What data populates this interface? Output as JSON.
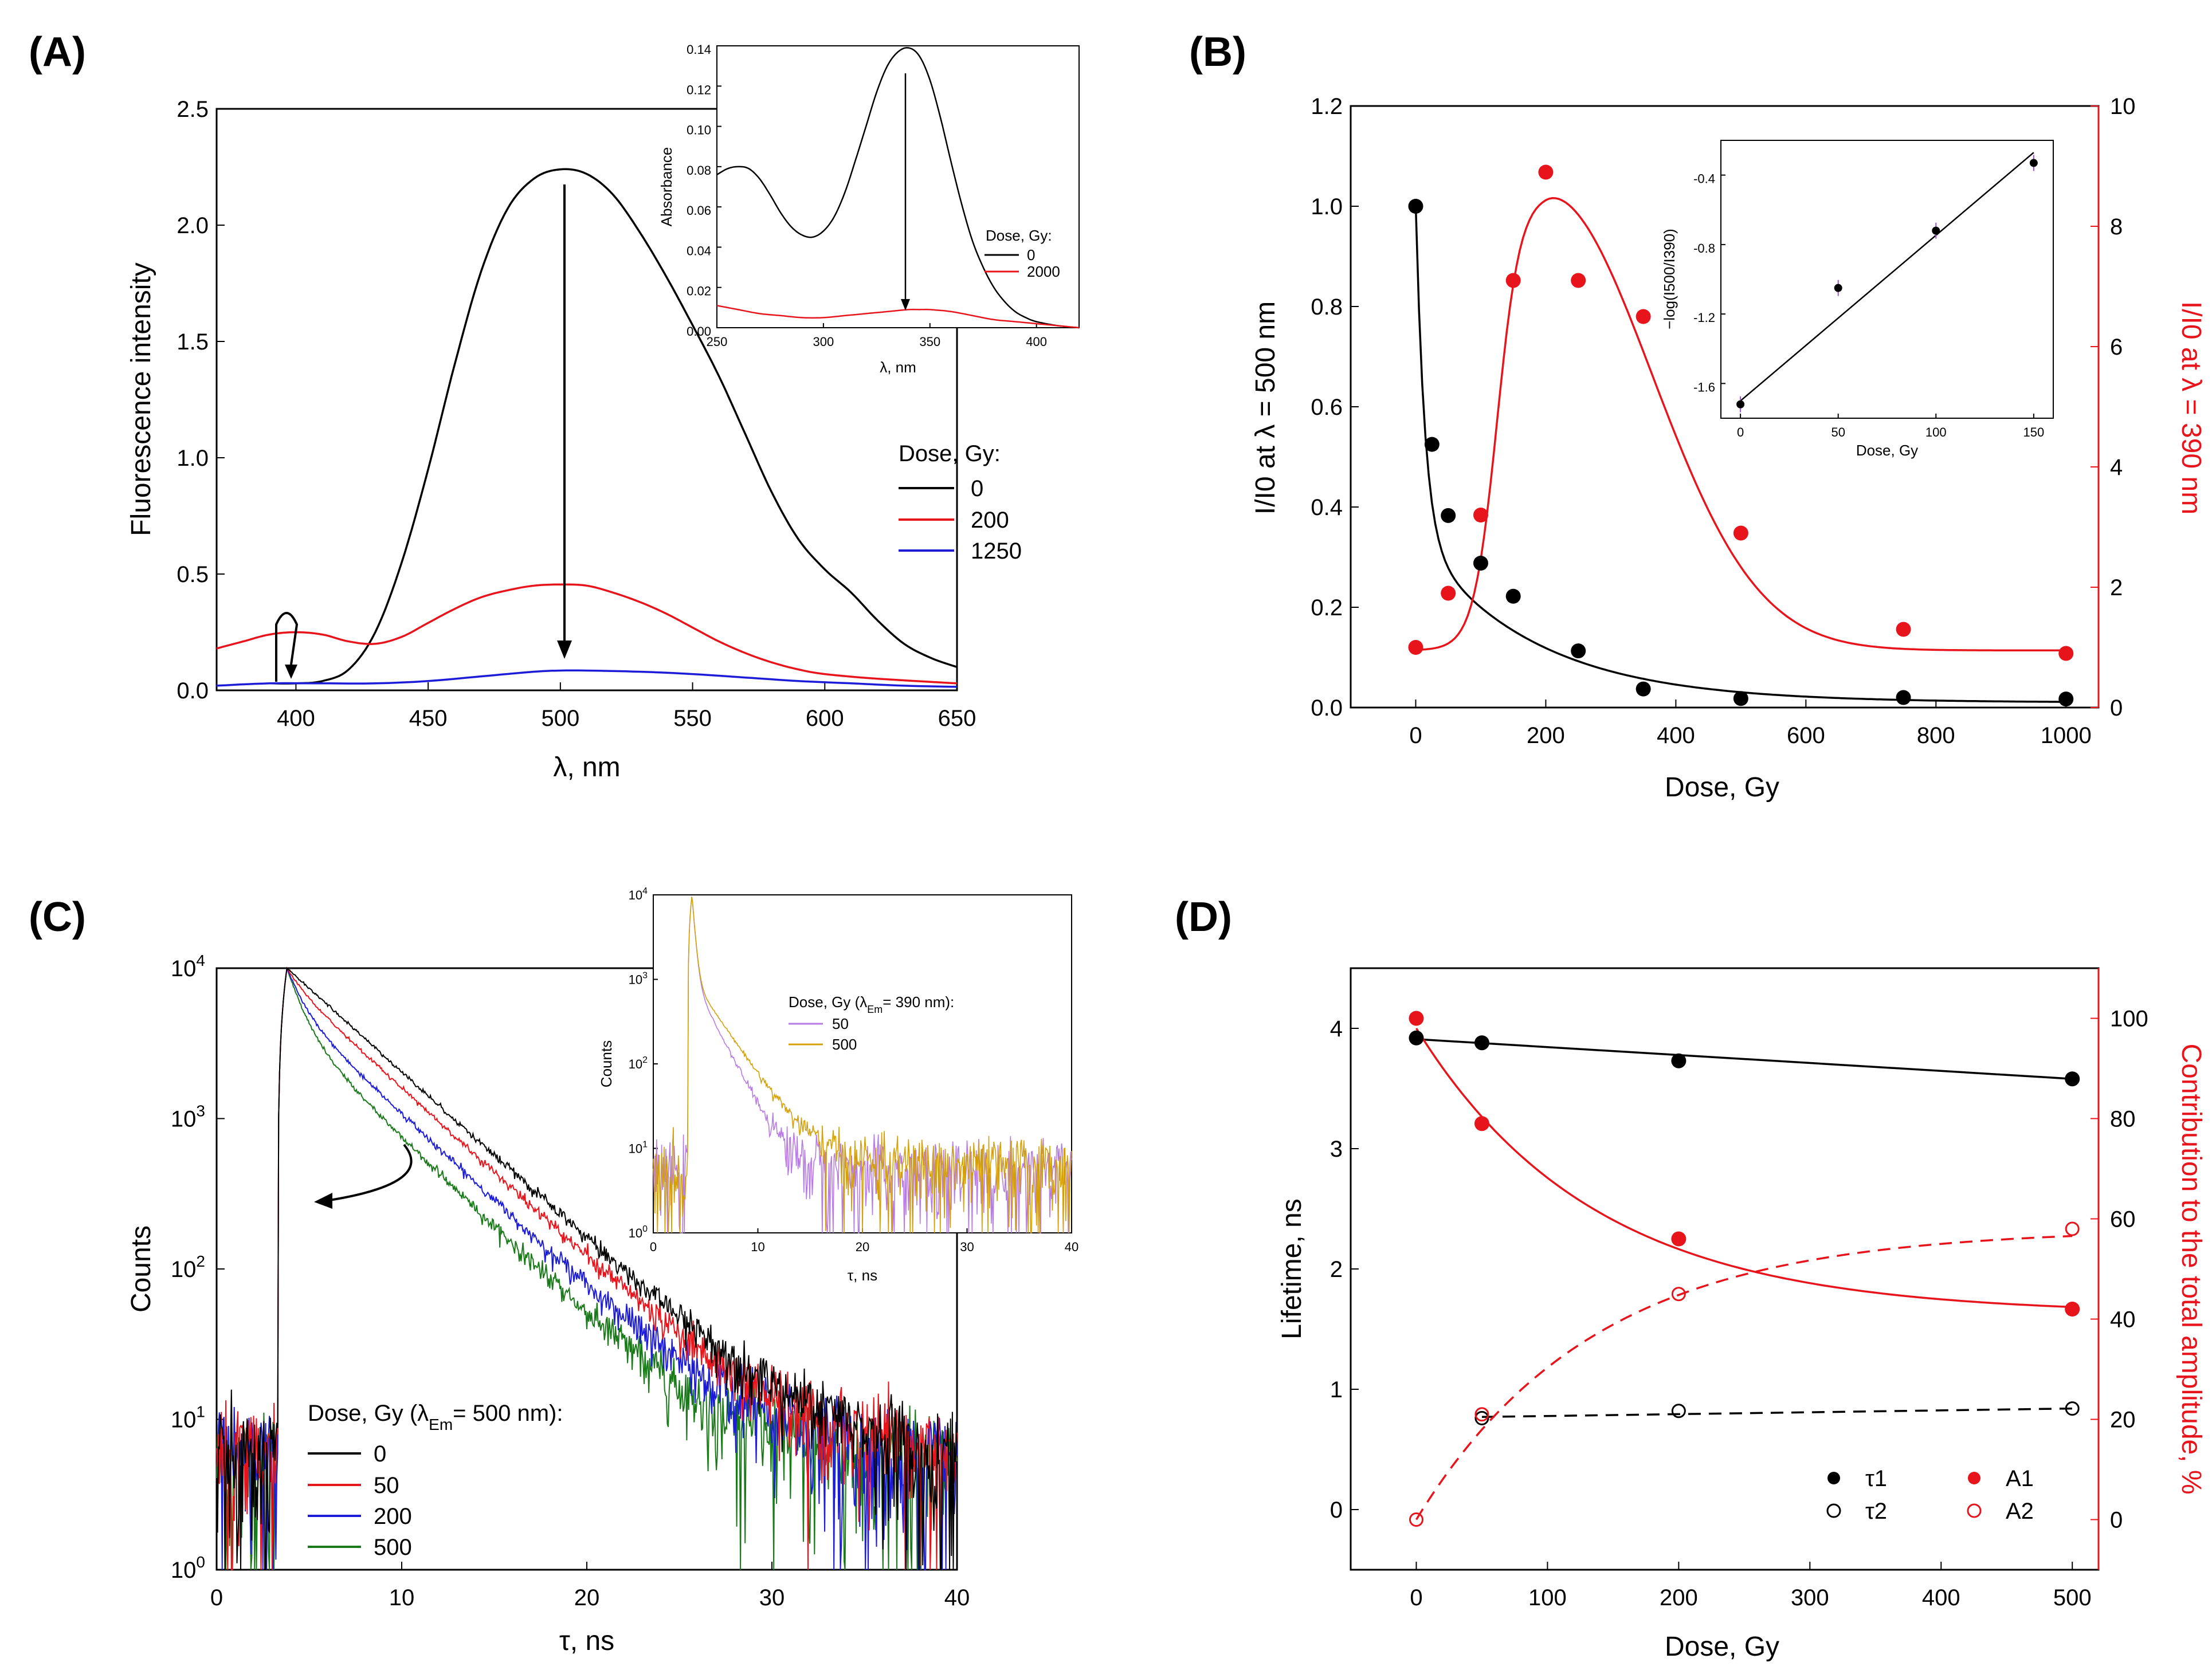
{
  "chart_data": [
    {
      "panel": "(A)",
      "type": "line",
      "xlabel": "λ, nm",
      "ylabel": "Fluorescence intensity",
      "xlim": [
        370,
        650
      ],
      "ylim": [
        0,
        2.5
      ],
      "xticks": [
        "400",
        "450",
        "500",
        "550",
        "600",
        "650"
      ],
      "yticks": [
        "0.0",
        "0.5",
        "1.0",
        "1.5",
        "2.0",
        "2.5"
      ],
      "legend_title": "Dose, Gy:",
      "series": [
        {
          "name": "0",
          "color": "#000000",
          "x": [
            390,
            400,
            410,
            420,
            430,
            440,
            450,
            460,
            470,
            480,
            490,
            500,
            510,
            520,
            530,
            540,
            550,
            560,
            570,
            580,
            590,
            600,
            610,
            620,
            630,
            640,
            650
          ],
          "y": [
            0.03,
            0.03,
            0.04,
            0.09,
            0.25,
            0.55,
            0.95,
            1.4,
            1.8,
            2.07,
            2.2,
            2.24,
            2.22,
            2.13,
            1.97,
            1.78,
            1.57,
            1.35,
            1.1,
            0.85,
            0.65,
            0.52,
            0.42,
            0.3,
            0.2,
            0.14,
            0.1
          ]
        },
        {
          "name": "200",
          "color": "#e8141b",
          "x": [
            370,
            380,
            390,
            400,
            410,
            420,
            430,
            440,
            450,
            460,
            470,
            480,
            490,
            500,
            510,
            520,
            530,
            540,
            550,
            560,
            570,
            580,
            590,
            600,
            620,
            650
          ],
          "y": [
            0.18,
            0.21,
            0.24,
            0.25,
            0.24,
            0.21,
            0.2,
            0.23,
            0.29,
            0.35,
            0.4,
            0.43,
            0.45,
            0.455,
            0.45,
            0.42,
            0.38,
            0.33,
            0.27,
            0.21,
            0.16,
            0.12,
            0.09,
            0.07,
            0.05,
            0.03
          ]
        },
        {
          "name": "1250",
          "color": "#1c1cd8",
          "x": [
            370,
            390,
            410,
            430,
            450,
            470,
            490,
            500,
            510,
            530,
            550,
            570,
            590,
            610,
            630,
            650
          ],
          "y": [
            0.02,
            0.03,
            0.03,
            0.03,
            0.04,
            0.06,
            0.08,
            0.085,
            0.085,
            0.08,
            0.07,
            0.055,
            0.04,
            0.03,
            0.02,
            0.015
          ]
        }
      ],
      "inset": {
        "type": "line",
        "xlabel": "λ, nm",
        "ylabel": "Absorbance",
        "xlim": [
          250,
          420
        ],
        "ylim": [
          0,
          0.14
        ],
        "xticks": [
          "250",
          "300",
          "350",
          "400"
        ],
        "yticks": [
          "0.00",
          "0.02",
          "0.04",
          "0.06",
          "0.08",
          "0.10",
          "0.12",
          "0.14"
        ],
        "legend_title": "Dose, Gy:",
        "series": [
          {
            "name": "0",
            "color": "#000000",
            "x": [
              250,
              255,
              260,
              265,
              270,
              275,
              280,
              285,
              290,
              295,
              300,
              305,
              310,
              315,
              320,
              325,
              330,
              335,
              340,
              345,
              350,
              355,
              360,
              365,
              370,
              375,
              380,
              385,
              390,
              395,
              400,
              410,
              420
            ],
            "y": [
              0.076,
              0.079,
              0.08,
              0.079,
              0.074,
              0.066,
              0.057,
              0.05,
              0.046,
              0.045,
              0.048,
              0.055,
              0.067,
              0.083,
              0.1,
              0.117,
              0.13,
              0.137,
              0.139,
              0.135,
              0.123,
              0.104,
              0.082,
              0.061,
              0.043,
              0.03,
              0.02,
              0.013,
              0.008,
              0.005,
              0.003,
              0.001,
              0.0
            ]
          },
          {
            "name": "2000",
            "color": "#e8141b",
            "x": [
              250,
              260,
              270,
              280,
              290,
              300,
              310,
              320,
              330,
              340,
              345,
              350,
              360,
              370,
              380,
              390,
              400,
              410,
              420
            ],
            "y": [
              0.011,
              0.009,
              0.007,
              0.006,
              0.005,
              0.005,
              0.006,
              0.007,
              0.008,
              0.009,
              0.009,
              0.009,
              0.008,
              0.006,
              0.004,
              0.003,
              0.002,
              0.001,
              0.0
            ]
          }
        ]
      }
    },
    {
      "panel": "(B)",
      "type": "scatter",
      "xlabel": "Dose, Gy",
      "ylabel_left": "I/I0 at λ = 500 nm",
      "ylabel_right": "I/I0 at λ = 390 nm",
      "xlim": [
        -100,
        1050
      ],
      "ylim_left": [
        0,
        1.2
      ],
      "ylim_right": [
        0,
        10
      ],
      "xticks": [
        "0",
        "200",
        "400",
        "600",
        "800",
        "1000"
      ],
      "yticks_left": [
        "0.0",
        "0.2",
        "0.4",
        "0.6",
        "0.8",
        "1.0",
        "1.2"
      ],
      "yticks_right": [
        "0",
        "2",
        "4",
        "6",
        "8",
        "10"
      ],
      "series": [
        {
          "name": "I/I0 at 500 nm",
          "axis": "left",
          "color": "#000000",
          "x": [
            0,
            25,
            50,
            100,
            150,
            250,
            350,
            500,
            750,
            1000
          ],
          "y": [
            1.0,
            0.525,
            0.383,
            0.288,
            0.222,
            0.113,
            0.037,
            0.018,
            0.02,
            0.017
          ]
        },
        {
          "name": "I/I0 at 390 nm",
          "axis": "right",
          "color": "#e8141b",
          "x": [
            0,
            50,
            100,
            150,
            200,
            250,
            350,
            500,
            750,
            1000
          ],
          "y": [
            1.0,
            1.9,
            3.2,
            7.1,
            8.9,
            7.1,
            6.5,
            2.9,
            1.3,
            0.9
          ]
        }
      ],
      "inset": {
        "type": "scatter",
        "xlabel": "Dose, Gy",
        "ylabel": "−log(I500/I390)",
        "xlim": [
          -10,
          160
        ],
        "ylim": [
          -1.8,
          -0.2
        ],
        "xticks": [
          "0",
          "50",
          "100",
          "150"
        ],
        "yticks": [
          "-1.6",
          "-1.2",
          "-0.8",
          "-0.4"
        ],
        "x": [
          0,
          50,
          100,
          150
        ],
        "y": [
          -1.72,
          -1.05,
          -0.72,
          -0.33
        ],
        "fit": [
          [
            0,
            -1.7
          ],
          [
            150,
            -0.27
          ]
        ]
      }
    },
    {
      "panel": "(C)",
      "type": "line",
      "xlabel": "τ, ns",
      "ylabel": "Counts",
      "xlim": [
        0,
        40
      ],
      "ylim": [
        1,
        10000
      ],
      "yscale": "log",
      "xticks": [
        "0",
        "10",
        "20",
        "30",
        "40"
      ],
      "legend_title": "Dose, Gy (λEm= 500 nm):",
      "series": [
        {
          "name": "0",
          "color": "#000000",
          "tau_fast": 3.9,
          "tau_slow": 3.9,
          "frac_fast": 0.0
        },
        {
          "name": "50",
          "color": "#e8141b",
          "tau_fast": 0.8,
          "tau_slow": 3.85,
          "frac_fast": 0.2
        },
        {
          "name": "200",
          "color": "#1c1cd8",
          "tau_fast": 0.8,
          "tau_slow": 3.75,
          "frac_fast": 0.44
        },
        {
          "name": "500",
          "color": "#1a7a1a",
          "tau_fast": 0.8,
          "tau_slow": 3.6,
          "frac_fast": 0.58
        }
      ],
      "inset": {
        "xlabel": "τ, ns",
        "ylabel": "Counts",
        "xlim": [
          0,
          40
        ],
        "ylim": [
          1,
          10000
        ],
        "xticks": [
          "0",
          "10",
          "20",
          "30",
          "40"
        ],
        "legend_title": "Dose, Gy (λEm= 390 nm):",
        "series": [
          {
            "name": "50",
            "color": "#b87be6"
          },
          {
            "name": "500",
            "color": "#d4a00a"
          }
        ]
      }
    },
    {
      "panel": "(D)",
      "type": "scatter",
      "xlabel": "Dose, Gy",
      "ylabel_left": "Lifetime, ns",
      "ylabel_right": "Contribution to the total amplitude, %",
      "xlim": [
        -50,
        520
      ],
      "ylim_left": [
        -0.5,
        4.5
      ],
      "ylim_right": [
        -10,
        110
      ],
      "xticks": [
        "0",
        "100",
        "200",
        "300",
        "400",
        "500"
      ],
      "yticks_left": [
        "0",
        "1",
        "2",
        "3",
        "4"
      ],
      "yticks_right": [
        "0",
        "20",
        "40",
        "60",
        "80",
        "100"
      ],
      "series": [
        {
          "name": "τ1",
          "axis": "left",
          "marker": "filled",
          "color": "#000000",
          "x": [
            0,
            50,
            200,
            500
          ],
          "y": [
            3.92,
            3.88,
            3.73,
            3.58
          ]
        },
        {
          "name": "τ2",
          "axis": "left",
          "marker": "open",
          "color": "#000000",
          "x": [
            50,
            200,
            500
          ],
          "y": [
            0.76,
            0.82,
            0.84
          ]
        },
        {
          "name": "A1",
          "axis": "right",
          "marker": "filled",
          "color": "#e8141b",
          "x": [
            0,
            50,
            200,
            500
          ],
          "y": [
            100,
            79,
            56,
            42
          ]
        },
        {
          "name": "A2",
          "axis": "right",
          "marker": "open",
          "color": "#e8141b",
          "x": [
            0,
            50,
            200,
            500
          ],
          "y": [
            0,
            21,
            45,
            58
          ]
        }
      ]
    }
  ]
}
